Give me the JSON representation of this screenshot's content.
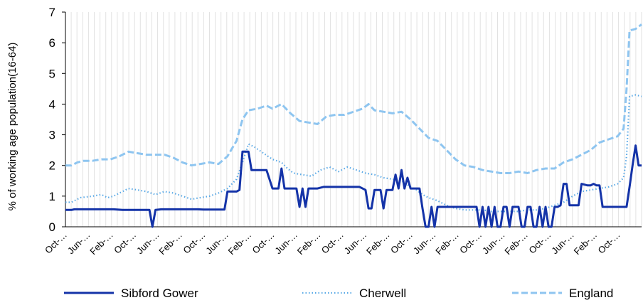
{
  "chart_data": {
    "type": "line",
    "title": "",
    "xlabel": "",
    "ylabel": "% of working age population(16-64)",
    "ylim": [
      0,
      7
    ],
    "yticks": [
      0,
      1,
      2,
      3,
      4,
      5,
      6,
      7
    ],
    "xtick_labels": [
      "Oct-…",
      "Jun-…",
      "Feb-…",
      "Oct-…",
      "Jun-…",
      "Feb-…",
      "Oct-…",
      "Jun-…",
      "Feb-…",
      "Oct-…",
      "Jun-…",
      "Feb-…",
      "Oct-…",
      "Jun-…",
      "Feb-…",
      "Oct-…",
      "Jun-…",
      "Feb-…",
      "Oct-…",
      "Jun-…",
      "Feb-…",
      "Oct-…",
      "Jun-…",
      "Feb-…",
      "Oct-…"
    ],
    "x_index_range": [
      0,
      192
    ],
    "vertical_grid": true,
    "horizontal_grid": false,
    "legend_position": "bottom",
    "series": [
      {
        "name": "Sibford Gower",
        "color": "#1433a8",
        "style": "solid",
        "points": [
          [
            0,
            0.55
          ],
          [
            2,
            0.55
          ],
          [
            3,
            0.57
          ],
          [
            16,
            0.57
          ],
          [
            19,
            0.55
          ],
          [
            28,
            0.55
          ],
          [
            29,
            0.0
          ],
          [
            30,
            0.55
          ],
          [
            32,
            0.57
          ],
          [
            44,
            0.57
          ],
          [
            46,
            0.56
          ],
          [
            53,
            0.56
          ],
          [
            54,
            1.15
          ],
          [
            57,
            1.15
          ],
          [
            58,
            1.2
          ],
          [
            59,
            2.45
          ],
          [
            61,
            2.45
          ],
          [
            62,
            1.85
          ],
          [
            67,
            1.85
          ],
          [
            69,
            1.25
          ],
          [
            71,
            1.25
          ],
          [
            72,
            1.9
          ],
          [
            73,
            1.25
          ],
          [
            77,
            1.25
          ],
          [
            78,
            0.65
          ],
          [
            79,
            1.25
          ],
          [
            80,
            0.65
          ],
          [
            81,
            1.25
          ],
          [
            84,
            1.25
          ],
          [
            86,
            1.3
          ],
          [
            98,
            1.3
          ],
          [
            99,
            1.25
          ],
          [
            100,
            1.2
          ],
          [
            101,
            0.6
          ],
          [
            102,
            0.6
          ],
          [
            103,
            1.2
          ],
          [
            105,
            1.2
          ],
          [
            106,
            0.6
          ],
          [
            107,
            1.2
          ],
          [
            109,
            1.2
          ],
          [
            110,
            1.7
          ],
          [
            111,
            1.25
          ],
          [
            112,
            1.85
          ],
          [
            113,
            1.25
          ],
          [
            114,
            1.6
          ],
          [
            115,
            1.25
          ],
          [
            118,
            1.25
          ],
          [
            119,
            0.6
          ],
          [
            120,
            0.0
          ],
          [
            121,
            0.0
          ],
          [
            122,
            0.65
          ],
          [
            123,
            0.0
          ],
          [
            124,
            0.65
          ],
          [
            125,
            0.65
          ],
          [
            126,
            0.65
          ],
          [
            127,
            0.65
          ],
          [
            137,
            0.65
          ],
          [
            138,
            0.0
          ],
          [
            139,
            0.65
          ],
          [
            140,
            0.0
          ],
          [
            141,
            0.65
          ],
          [
            142,
            0.0
          ],
          [
            143,
            0.65
          ],
          [
            144,
            0.0
          ],
          [
            145,
            0.0
          ],
          [
            146,
            0.65
          ],
          [
            147,
            0.65
          ],
          [
            148,
            0.0
          ],
          [
            149,
            0.65
          ],
          [
            151,
            0.65
          ],
          [
            152,
            0.0
          ],
          [
            153,
            0.0
          ],
          [
            154,
            0.65
          ],
          [
            155,
            0.65
          ],
          [
            156,
            0.0
          ],
          [
            157,
            0.0
          ],
          [
            158,
            0.65
          ],
          [
            159,
            0.0
          ],
          [
            160,
            0.65
          ],
          [
            161,
            0.0
          ],
          [
            162,
            0.0
          ],
          [
            163,
            0.65
          ],
          [
            164,
            0.65
          ],
          [
            165,
            0.7
          ],
          [
            166,
            1.4
          ],
          [
            167,
            1.4
          ],
          [
            168,
            0.7
          ],
          [
            171,
            0.7
          ],
          [
            172,
            1.4
          ],
          [
            174,
            1.35
          ],
          [
            175,
            1.35
          ],
          [
            176,
            1.4
          ],
          [
            177,
            1.35
          ],
          [
            178,
            1.35
          ],
          [
            179,
            0.65
          ],
          [
            187,
            0.65
          ],
          [
            188,
            1.3
          ],
          [
            189,
            2.0
          ],
          [
            190,
            2.65
          ],
          [
            191,
            2.0
          ],
          [
            192,
            2.0
          ]
        ]
      },
      {
        "name": "Cherwell",
        "color": "#5aa9e6",
        "style": "dotted",
        "points": [
          [
            0,
            0.8
          ],
          [
            2,
            0.8
          ],
          [
            5,
            0.95
          ],
          [
            9,
            1.0
          ],
          [
            12,
            1.05
          ],
          [
            14,
            0.95
          ],
          [
            16,
            1.0
          ],
          [
            19,
            1.15
          ],
          [
            21,
            1.25
          ],
          [
            24,
            1.2
          ],
          [
            27,
            1.15
          ],
          [
            30,
            1.05
          ],
          [
            33,
            1.15
          ],
          [
            36,
            1.1
          ],
          [
            39,
            1.0
          ],
          [
            42,
            0.9
          ],
          [
            45,
            0.95
          ],
          [
            48,
            1.0
          ],
          [
            51,
            1.1
          ],
          [
            54,
            1.25
          ],
          [
            57,
            1.55
          ],
          [
            59,
            2.1
          ],
          [
            61,
            2.7
          ],
          [
            63,
            2.6
          ],
          [
            66,
            2.4
          ],
          [
            69,
            2.2
          ],
          [
            72,
            2.1
          ],
          [
            74,
            1.9
          ],
          [
            76,
            1.75
          ],
          [
            79,
            1.7
          ],
          [
            82,
            1.65
          ],
          [
            85,
            1.85
          ],
          [
            88,
            1.95
          ],
          [
            91,
            1.8
          ],
          [
            94,
            1.95
          ],
          [
            97,
            1.85
          ],
          [
            100,
            1.75
          ],
          [
            103,
            1.7
          ],
          [
            106,
            1.6
          ],
          [
            109,
            1.55
          ],
          [
            112,
            1.5
          ],
          [
            115,
            1.3
          ],
          [
            117,
            1.2
          ],
          [
            119,
            1.05
          ],
          [
            121,
            0.95
          ],
          [
            124,
            0.85
          ],
          [
            127,
            0.7
          ],
          [
            130,
            0.6
          ],
          [
            133,
            0.55
          ],
          [
            136,
            0.55
          ],
          [
            139,
            0.55
          ],
          [
            142,
            0.5
          ],
          [
            145,
            0.5
          ],
          [
            148,
            0.5
          ],
          [
            151,
            0.5
          ],
          [
            154,
            0.55
          ],
          [
            157,
            0.55
          ],
          [
            160,
            0.6
          ],
          [
            163,
            0.7
          ],
          [
            166,
            0.8
          ],
          [
            169,
            1.0
          ],
          [
            172,
            1.15
          ],
          [
            175,
            1.2
          ],
          [
            178,
            1.25
          ],
          [
            181,
            1.3
          ],
          [
            184,
            1.4
          ],
          [
            186,
            1.6
          ],
          [
            187,
            2.3
          ],
          [
            188,
            4.25
          ],
          [
            190,
            4.3
          ],
          [
            192,
            4.25
          ]
        ]
      },
      {
        "name": "England",
        "color": "#8ec5f0",
        "style": "dashed",
        "points": [
          [
            0,
            2.0
          ],
          [
            2,
            2.0
          ],
          [
            4,
            2.1
          ],
          [
            6,
            2.15
          ],
          [
            9,
            2.15
          ],
          [
            12,
            2.2
          ],
          [
            15,
            2.2
          ],
          [
            18,
            2.3
          ],
          [
            21,
            2.45
          ],
          [
            24,
            2.4
          ],
          [
            27,
            2.35
          ],
          [
            30,
            2.35
          ],
          [
            33,
            2.35
          ],
          [
            36,
            2.25
          ],
          [
            39,
            2.1
          ],
          [
            42,
            2.0
          ],
          [
            45,
            2.05
          ],
          [
            48,
            2.1
          ],
          [
            51,
            2.05
          ],
          [
            54,
            2.3
          ],
          [
            57,
            2.8
          ],
          [
            59,
            3.5
          ],
          [
            61,
            3.8
          ],
          [
            64,
            3.85
          ],
          [
            67,
            3.95
          ],
          [
            69,
            3.85
          ],
          [
            72,
            4.0
          ],
          [
            75,
            3.7
          ],
          [
            78,
            3.45
          ],
          [
            81,
            3.4
          ],
          [
            84,
            3.35
          ],
          [
            87,
            3.6
          ],
          [
            90,
            3.65
          ],
          [
            93,
            3.65
          ],
          [
            96,
            3.75
          ],
          [
            99,
            3.85
          ],
          [
            101,
            4.0
          ],
          [
            103,
            3.8
          ],
          [
            106,
            3.75
          ],
          [
            109,
            3.7
          ],
          [
            112,
            3.75
          ],
          [
            115,
            3.5
          ],
          [
            118,
            3.2
          ],
          [
            121,
            2.9
          ],
          [
            124,
            2.8
          ],
          [
            127,
            2.5
          ],
          [
            130,
            2.2
          ],
          [
            133,
            2.0
          ],
          [
            136,
            1.95
          ],
          [
            139,
            1.85
          ],
          [
            142,
            1.8
          ],
          [
            145,
            1.75
          ],
          [
            148,
            1.75
          ],
          [
            151,
            1.8
          ],
          [
            154,
            1.75
          ],
          [
            157,
            1.85
          ],
          [
            160,
            1.9
          ],
          [
            163,
            1.9
          ],
          [
            166,
            2.1
          ],
          [
            169,
            2.2
          ],
          [
            172,
            2.35
          ],
          [
            175,
            2.5
          ],
          [
            178,
            2.75
          ],
          [
            181,
            2.85
          ],
          [
            184,
            2.95
          ],
          [
            186,
            3.2
          ],
          [
            187,
            4.5
          ],
          [
            188,
            6.4
          ],
          [
            190,
            6.45
          ],
          [
            192,
            6.6
          ]
        ]
      }
    ]
  }
}
